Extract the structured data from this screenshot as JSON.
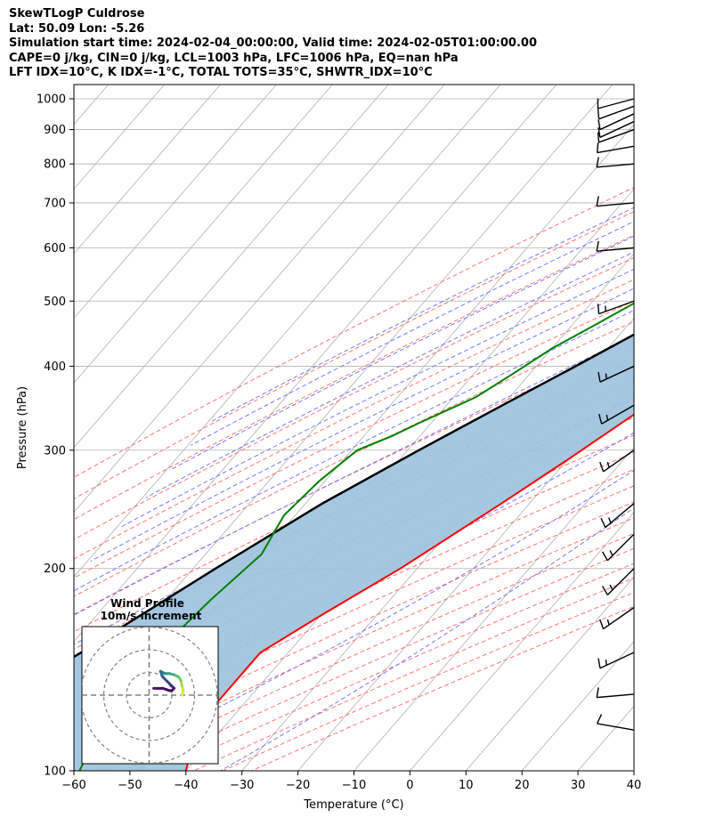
{
  "header": {
    "line1": "SkewTLogP Culdrose",
    "line2": "Lat: 50.09   Lon: -5.26",
    "line3": "Simulation start time: 2024-02-04_00:00:00, Valid time: 2024-02-05T01:00:00.00",
    "line4": "CAPE=0 j/kg, CIN=0 j/kg, LCL=1003 hPa, LFC=1006 hPa, EQ=nan hPa",
    "line5": "LFT IDX=10°C, K IDX=-1°C, TOTAL TOTS=35°C, SHWTR_IDX=10°C"
  },
  "chart_data": {
    "type": "line",
    "subtype": "skew-t log-p",
    "xlabel": "Temperature (°C)",
    "ylabel": "Pressure (hPa)",
    "xlim": [
      -60,
      40
    ],
    "ylim": [
      1050,
      100
    ],
    "y_scale": "log",
    "x_ticks": [
      -60,
      -50,
      -40,
      -30,
      -20,
      -10,
      0,
      10,
      20,
      30,
      40
    ],
    "x_tick_labels": [
      "−60",
      "−50",
      "−40",
      "−30",
      "−20",
      "−10",
      "0",
      "10",
      "20",
      "30",
      "40"
    ],
    "y_ticks": [
      1000,
      900,
      800,
      700,
      600,
      500,
      400,
      300,
      200,
      100
    ],
    "y_tick_labels": [
      "1000",
      "900",
      "800",
      "700",
      "600",
      "500",
      "400",
      "300",
      "200",
      "100"
    ],
    "grid": true,
    "colors": {
      "temperature": "#ff0000",
      "dewpoint": "#008000",
      "parcel": "#000000",
      "cape_shading": "#a0c4de",
      "dry_adiabat": "#ff6666",
      "moist_adiabat": "#6a6aff",
      "mixing_ratio": "#9a40d0",
      "isotherm": "#b0b0b0"
    },
    "series": [
      {
        "key": "temperature",
        "points": [
          [
            10.3,
            1020
          ],
          [
            10.5,
            1000
          ],
          [
            12.5,
            960
          ],
          [
            14,
            920
          ],
          [
            14.3,
            900
          ],
          [
            13.5,
            860
          ],
          [
            12.5,
            820
          ],
          [
            11,
            780
          ],
          [
            10,
            740
          ],
          [
            9,
            700
          ],
          [
            8,
            670
          ],
          [
            6,
            630
          ],
          [
            4,
            600
          ],
          [
            2,
            570
          ],
          [
            0,
            540
          ],
          [
            -2,
            510
          ],
          [
            -3.5,
            480
          ],
          [
            -5.5,
            450
          ],
          [
            -9,
            400
          ],
          [
            -15,
            340
          ],
          [
            -20,
            290
          ],
          [
            -25,
            250
          ],
          [
            -33,
            200
          ],
          [
            -40,
            170
          ],
          [
            -45,
            150
          ],
          [
            -45,
            140
          ],
          [
            -45,
            130
          ],
          [
            -45,
            120
          ],
          [
            -43,
            110
          ],
          [
            -40,
            100
          ]
        ]
      },
      {
        "key": "dewpoint",
        "points": [
          [
            9.5,
            1010
          ],
          [
            6,
            980
          ],
          [
            2,
            950
          ],
          [
            -5,
            900
          ],
          [
            -15,
            830
          ],
          [
            -20,
            760
          ],
          [
            -22,
            730
          ],
          [
            -23,
            700
          ],
          [
            -25,
            670
          ],
          [
            -25,
            640
          ],
          [
            -26,
            610
          ],
          [
            -29,
            550
          ],
          [
            -31,
            510
          ],
          [
            -36,
            460
          ],
          [
            -40,
            425
          ],
          [
            -43,
            390
          ],
          [
            -46,
            360
          ],
          [
            -52,
            330
          ],
          [
            -55,
            315
          ],
          [
            -59,
            300
          ],
          [
            -61,
            270
          ],
          [
            -62,
            240
          ],
          [
            -60,
            210
          ],
          [
            -62,
            180
          ],
          [
            -63,
            160
          ],
          [
            -63,
            150
          ],
          [
            -61,
            135
          ],
          [
            -61,
            125
          ],
          [
            -60,
            115
          ],
          [
            -60,
            105
          ],
          [
            -59,
            100
          ]
        ]
      },
      {
        "key": "parcel",
        "points": [
          [
            10.5,
            1010
          ],
          [
            9,
            1000
          ],
          [
            8,
            950
          ],
          [
            6,
            900
          ],
          [
            4,
            850
          ],
          [
            1.5,
            800
          ],
          [
            -1.5,
            750
          ],
          [
            -5,
            700
          ],
          [
            -8,
            650
          ],
          [
            -12,
            600
          ],
          [
            -16,
            550
          ],
          [
            -21,
            500
          ],
          [
            -27,
            450
          ],
          [
            -33,
            400
          ],
          [
            -40,
            350
          ],
          [
            -48,
            300
          ],
          [
            -57,
            250
          ],
          [
            -66,
            200
          ],
          [
            -77,
            150
          ],
          [
            -85,
            125
          ],
          [
            -93,
            100
          ]
        ]
      }
    ],
    "wind_barbs": [
      {
        "pressure": 1000,
        "speed_kt": 10,
        "direction_deg": 255
      },
      {
        "pressure": 975,
        "speed_kt": 10,
        "direction_deg": 250
      },
      {
        "pressure": 950,
        "speed_kt": 10,
        "direction_deg": 245
      },
      {
        "pressure": 925,
        "speed_kt": 10,
        "direction_deg": 245
      },
      {
        "pressure": 900,
        "speed_kt": 10,
        "direction_deg": 250
      },
      {
        "pressure": 850,
        "speed_kt": 10,
        "direction_deg": 260
      },
      {
        "pressure": 800,
        "speed_kt": 10,
        "direction_deg": 265
      },
      {
        "pressure": 700,
        "speed_kt": 10,
        "direction_deg": 265
      },
      {
        "pressure": 600,
        "speed_kt": 10,
        "direction_deg": 265
      },
      {
        "pressure": 500,
        "speed_kt": 15,
        "direction_deg": 250
      },
      {
        "pressure": 400,
        "speed_kt": 15,
        "direction_deg": 245
      },
      {
        "pressure": 350,
        "speed_kt": 15,
        "direction_deg": 240
      },
      {
        "pressure": 300,
        "speed_kt": 15,
        "direction_deg": 235
      },
      {
        "pressure": 250,
        "speed_kt": 15,
        "direction_deg": 230
      },
      {
        "pressure": 225,
        "speed_kt": 15,
        "direction_deg": 225
      },
      {
        "pressure": 200,
        "speed_kt": 15,
        "direction_deg": 225
      },
      {
        "pressure": 175,
        "speed_kt": 15,
        "direction_deg": 235
      },
      {
        "pressure": 150,
        "speed_kt": 15,
        "direction_deg": 245
      },
      {
        "pressure": 130,
        "speed_kt": 10,
        "direction_deg": 265
      },
      {
        "pressure": 115,
        "speed_kt": 10,
        "direction_deg": 280
      }
    ]
  },
  "inset": {
    "title_line1": "Wind Profile",
    "title_line2": "10m/s increment",
    "hodograph": {
      "range_ms": 30,
      "rings_ms": [
        10,
        20,
        30
      ],
      "points": [
        [
          6.5,
          0
        ],
        [
          7,
          2
        ],
        [
          6.5,
          4
        ],
        [
          6,
          6.5
        ],
        [
          5,
          8
        ],
        [
          3,
          9
        ],
        [
          1,
          9.5
        ],
        [
          -1,
          9.5
        ],
        [
          -3,
          10.5
        ],
        [
          -2,
          8
        ],
        [
          0,
          6
        ],
        [
          2,
          4
        ],
        [
          3,
          3
        ],
        [
          2,
          2
        ],
        [
          1,
          2
        ],
        [
          -2,
          3
        ],
        [
          -4,
          3
        ],
        [
          -6,
          3
        ]
      ],
      "colors": [
        "#f0e442",
        "#d4e34a",
        "#a6db55",
        "#7acf63",
        "#55c26a",
        "#3fb07a",
        "#2f9c86",
        "#2a868c",
        "#2f6f8e",
        "#35588d",
        "#3b428a",
        "#3f2d80",
        "#44197a",
        "#440154",
        "#450a5e",
        "#460f63",
        "#471466",
        "#48186a"
      ]
    }
  }
}
